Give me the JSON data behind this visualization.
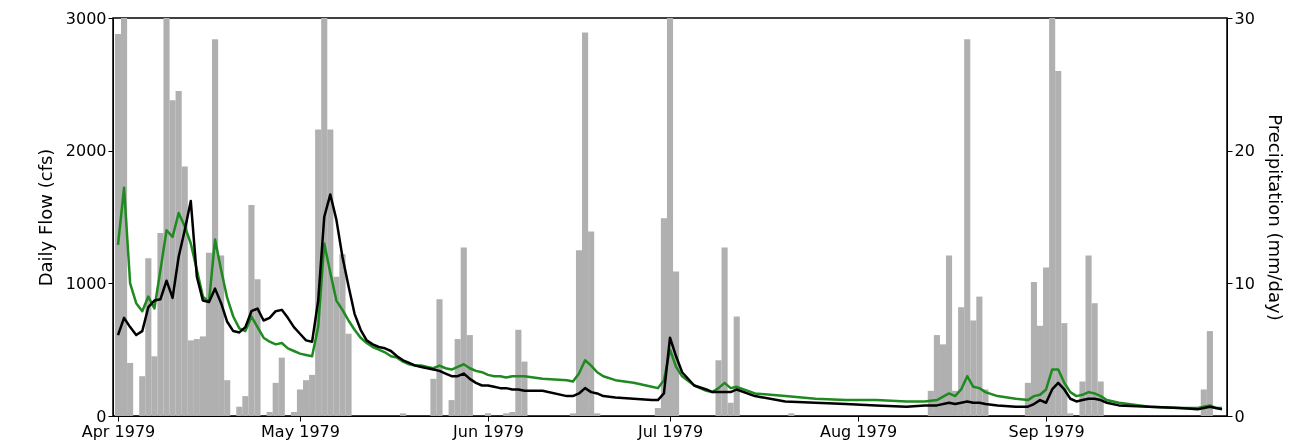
{
  "chart_data": {
    "type": "line",
    "ylabel": "Daily Flow (cfs)",
    "y2label": "Precipitation (mm/day)",
    "xlim": [
      "1979-04-01",
      "1979-09-30"
    ],
    "xticks": [
      {
        "value": "1979-04-01",
        "label": "Apr 1979"
      },
      {
        "value": "1979-05-01",
        "label": "May 1979"
      },
      {
        "value": "1979-06-01",
        "label": "Jun 1979"
      },
      {
        "value": "1979-07-01",
        "label": "Jul 1979"
      },
      {
        "value": "1979-08-01",
        "label": "Aug 1979"
      },
      {
        "value": "1979-09-01",
        "label": "Sep 1979"
      }
    ],
    "ylim": [
      0,
      3000
    ],
    "yticks": [
      0,
      1000,
      2000,
      3000
    ],
    "y2lim": [
      0,
      30
    ],
    "y2ticks": [
      0,
      10,
      20,
      30
    ],
    "series": [
      {
        "type": "bar",
        "axis": "y2",
        "color": "#b0b0b0",
        "x": [
          "1979-04-01",
          "1979-04-02",
          "1979-04-03",
          "1979-04-05",
          "1979-04-06",
          "1979-04-07",
          "1979-04-08",
          "1979-04-09",
          "1979-04-10",
          "1979-04-11",
          "1979-04-12",
          "1979-04-13",
          "1979-04-14",
          "1979-04-15",
          "1979-04-16",
          "1979-04-17",
          "1979-04-18",
          "1979-04-19",
          "1979-04-21",
          "1979-04-22",
          "1979-04-23",
          "1979-04-24",
          "1979-04-26",
          "1979-04-27",
          "1979-04-28",
          "1979-04-30",
          "1979-05-01",
          "1979-05-02",
          "1979-05-03",
          "1979-05-04",
          "1979-05-05",
          "1979-05-06",
          "1979-05-07",
          "1979-05-08",
          "1979-05-09",
          "1979-05-18",
          "1979-05-23",
          "1979-05-24",
          "1979-05-26",
          "1979-05-27",
          "1979-05-28",
          "1979-05-29",
          "1979-06-01",
          "1979-06-04",
          "1979-06-05",
          "1979-06-06",
          "1979-06-07",
          "1979-06-15",
          "1979-06-16",
          "1979-06-17",
          "1979-06-18",
          "1979-06-19",
          "1979-06-29",
          "1979-06-30",
          "1979-07-01",
          "1979-07-02",
          "1979-07-09",
          "1979-07-10",
          "1979-07-11",
          "1979-07-12",
          "1979-07-21",
          "1979-07-27",
          "1979-08-13",
          "1979-08-14",
          "1979-08-15",
          "1979-08-16",
          "1979-08-17",
          "1979-08-18",
          "1979-08-19",
          "1979-08-20",
          "1979-08-21",
          "1979-08-22",
          "1979-08-29",
          "1979-08-30",
          "1979-08-31",
          "1979-09-01",
          "1979-09-02",
          "1979-09-03",
          "1979-09-04",
          "1979-09-05",
          "1979-09-07",
          "1979-09-08",
          "1979-09-09",
          "1979-09-10",
          "1979-09-27",
          "1979-09-28"
        ],
        "values": [
          28.8,
          30,
          4.0,
          3.0,
          11.9,
          4.5,
          13.8,
          30,
          23.8,
          24.5,
          18.8,
          5.7,
          5.8,
          6.0,
          12.3,
          28.4,
          12.1,
          2.7,
          0.7,
          1.5,
          15.9,
          10.3,
          0.3,
          2.5,
          4.4,
          0.3,
          2.0,
          2.7,
          3.1,
          21.6,
          30,
          21.6,
          10.5,
          12.2,
          6.2,
          0.2,
          2.8,
          8.8,
          1.2,
          5.8,
          12.7,
          6.1,
          0.2,
          0.2,
          0.3,
          6.5,
          4.1,
          0.2,
          12.5,
          28.9,
          13.9,
          0.2,
          0.6,
          14.9,
          30,
          10.9,
          4.2,
          12.7,
          1.0,
          7.5,
          0.2,
          null,
          1.9,
          6.1,
          5.4,
          12.1,
          1.9,
          8.2,
          28.4,
          7.2,
          9.0,
          2.0,
          2.5,
          10.1,
          6.8,
          11.2,
          30,
          26.0,
          7.0,
          0.2,
          2.6,
          12.1,
          8.5,
          2.6,
          2.0,
          6.4
        ]
      },
      {
        "color": "#1f8a1f",
        "x": [
          "1979-04-01",
          "1979-04-02",
          "1979-04-03",
          "1979-04-04",
          "1979-04-05",
          "1979-04-06",
          "1979-04-07",
          "1979-04-08",
          "1979-04-09",
          "1979-04-10",
          "1979-04-11",
          "1979-04-12",
          "1979-04-13",
          "1979-04-14",
          "1979-04-15",
          "1979-04-16",
          "1979-04-17",
          "1979-04-18",
          "1979-04-19",
          "1979-04-20",
          "1979-04-21",
          "1979-04-22",
          "1979-04-23",
          "1979-04-24",
          "1979-04-25",
          "1979-04-26",
          "1979-04-27",
          "1979-04-28",
          "1979-04-29",
          "1979-04-30",
          "1979-05-01",
          "1979-05-02",
          "1979-05-03",
          "1979-05-04",
          "1979-05-05",
          "1979-05-06",
          "1979-05-07",
          "1979-05-08",
          "1979-05-09",
          "1979-05-10",
          "1979-05-11",
          "1979-05-12",
          "1979-05-13",
          "1979-05-14",
          "1979-05-15",
          "1979-05-16",
          "1979-05-17",
          "1979-05-18",
          "1979-05-19",
          "1979-05-20",
          "1979-05-21",
          "1979-05-22",
          "1979-05-23",
          "1979-05-24",
          "1979-05-25",
          "1979-05-26",
          "1979-05-27",
          "1979-05-28",
          "1979-05-29",
          "1979-05-30",
          "1979-05-31",
          "1979-06-01",
          "1979-06-02",
          "1979-06-03",
          "1979-06-04",
          "1979-06-05",
          "1979-06-06",
          "1979-06-07",
          "1979-06-10",
          "1979-06-14",
          "1979-06-15",
          "1979-06-16",
          "1979-06-17",
          "1979-06-18",
          "1979-06-19",
          "1979-06-20",
          "1979-06-22",
          "1979-06-25",
          "1979-06-28",
          "1979-06-29",
          "1979-06-30",
          "1979-07-01",
          "1979-07-02",
          "1979-07-03",
          "1979-07-05",
          "1979-07-07",
          "1979-07-08",
          "1979-07-09",
          "1979-07-10",
          "1979-07-11",
          "1979-07-12",
          "1979-07-15",
          "1979-07-20",
          "1979-07-25",
          "1979-07-30",
          "1979-08-04",
          "1979-08-09",
          "1979-08-12",
          "1979-08-14",
          "1979-08-16",
          "1979-08-17",
          "1979-08-18",
          "1979-08-19",
          "1979-08-20",
          "1979-08-21",
          "1979-08-22",
          "1979-08-24",
          "1979-08-27",
          "1979-08-29",
          "1979-08-30",
          "1979-08-31",
          "1979-09-01",
          "1979-09-02",
          "1979-09-03",
          "1979-09-04",
          "1979-09-05",
          "1979-09-06",
          "1979-09-07",
          "1979-09-08",
          "1979-09-09",
          "1979-09-10",
          "1979-09-11",
          "1979-09-13",
          "1979-09-18",
          "1979-09-23",
          "1979-09-26",
          "1979-09-27",
          "1979-09-28",
          "1979-09-29",
          "1979-09-30"
        ],
        "values": [
          1290,
          1720,
          1000,
          850,
          790,
          900,
          810,
          1100,
          1400,
          1350,
          1530,
          1430,
          1300,
          1100,
          900,
          860,
          1330,
          1100,
          890,
          750,
          660,
          640,
          750,
          670,
          590,
          560,
          540,
          550,
          510,
          490,
          470,
          460,
          450,
          670,
          1300,
          1080,
          870,
          800,
          720,
          650,
          590,
          550,
          520,
          500,
          480,
          450,
          440,
          410,
          390,
          380,
          380,
          370,
          360,
          380,
          360,
          350,
          370,
          390,
          360,
          340,
          330,
          310,
          300,
          300,
          290,
          300,
          300,
          300,
          280,
          270,
          260,
          320,
          420,
          380,
          330,
          300,
          270,
          250,
          220,
          210,
          270,
          500,
          370,
          300,
          230,
          190,
          180,
          210,
          250,
          210,
          220,
          170,
          150,
          130,
          120,
          120,
          110,
          110,
          120,
          170,
          150,
          200,
          300,
          220,
          210,
          180,
          150,
          130,
          120,
          150,
          160,
          200,
          350,
          350,
          250,
          180,
          150,
          160,
          180,
          170,
          150,
          120,
          100,
          70,
          60,
          60,
          70,
          80,
          60,
          60
        ]
      },
      {
        "color": "#000000",
        "x": [
          "1979-04-01",
          "1979-04-02",
          "1979-04-03",
          "1979-04-04",
          "1979-04-05",
          "1979-04-06",
          "1979-04-07",
          "1979-04-08",
          "1979-04-09",
          "1979-04-10",
          "1979-04-11",
          "1979-04-12",
          "1979-04-13",
          "1979-04-14",
          "1979-04-15",
          "1979-04-16",
          "1979-04-17",
          "1979-04-18",
          "1979-04-19",
          "1979-04-20",
          "1979-04-21",
          "1979-04-22",
          "1979-04-23",
          "1979-04-24",
          "1979-04-25",
          "1979-04-26",
          "1979-04-27",
          "1979-04-28",
          "1979-04-29",
          "1979-04-30",
          "1979-05-01",
          "1979-05-02",
          "1979-05-03",
          "1979-05-04",
          "1979-05-05",
          "1979-05-06",
          "1979-05-07",
          "1979-05-08",
          "1979-05-09",
          "1979-05-10",
          "1979-05-11",
          "1979-05-12",
          "1979-05-13",
          "1979-05-14",
          "1979-05-15",
          "1979-05-16",
          "1979-05-17",
          "1979-05-18",
          "1979-05-19",
          "1979-05-20",
          "1979-05-21",
          "1979-05-22",
          "1979-05-23",
          "1979-05-24",
          "1979-05-25",
          "1979-05-26",
          "1979-05-27",
          "1979-05-28",
          "1979-05-29",
          "1979-05-30",
          "1979-05-31",
          "1979-06-01",
          "1979-06-02",
          "1979-06-03",
          "1979-06-04",
          "1979-06-05",
          "1979-06-06",
          "1979-06-07",
          "1979-06-10",
          "1979-06-14",
          "1979-06-15",
          "1979-06-16",
          "1979-06-17",
          "1979-06-18",
          "1979-06-19",
          "1979-06-20",
          "1979-06-22",
          "1979-06-25",
          "1979-06-28",
          "1979-06-29",
          "1979-06-30",
          "1979-07-01",
          "1979-07-02",
          "1979-07-03",
          "1979-07-05",
          "1979-07-07",
          "1979-07-08",
          "1979-07-09",
          "1979-07-10",
          "1979-07-11",
          "1979-07-12",
          "1979-07-15",
          "1979-07-20",
          "1979-07-25",
          "1979-07-30",
          "1979-08-04",
          "1979-08-09",
          "1979-08-12",
          "1979-08-14",
          "1979-08-16",
          "1979-08-17",
          "1979-08-18",
          "1979-08-19",
          "1979-08-20",
          "1979-08-21",
          "1979-08-22",
          "1979-08-24",
          "1979-08-27",
          "1979-08-29",
          "1979-08-30",
          "1979-08-31",
          "1979-09-01",
          "1979-09-02",
          "1979-09-03",
          "1979-09-04",
          "1979-09-05",
          "1979-09-06",
          "1979-09-07",
          "1979-09-08",
          "1979-09-09",
          "1979-09-10",
          "1979-09-11",
          "1979-09-13",
          "1979-09-18",
          "1979-09-23",
          "1979-09-26",
          "1979-09-27",
          "1979-09-28",
          "1979-09-29",
          "1979-09-30"
        ],
        "values": [
          610,
          740,
          670,
          610,
          640,
          820,
          870,
          880,
          1020,
          890,
          1200,
          1400,
          1620,
          1050,
          870,
          860,
          960,
          850,
          710,
          640,
          630,
          670,
          790,
          810,
          720,
          740,
          790,
          800,
          740,
          670,
          620,
          570,
          560,
          870,
          1500,
          1670,
          1480,
          1200,
          980,
          770,
          650,
          570,
          540,
          520,
          510,
          490,
          450,
          420,
          400,
          380,
          370,
          360,
          350,
          340,
          320,
          300,
          300,
          320,
          280,
          250,
          230,
          230,
          220,
          210,
          210,
          200,
          200,
          190,
          190,
          150,
          150,
          170,
          210,
          180,
          170,
          150,
          140,
          130,
          120,
          120,
          170,
          590,
          450,
          330,
          230,
          200,
          180,
          180,
          180,
          180,
          200,
          150,
          110,
          100,
          90,
          80,
          70,
          80,
          80,
          100,
          90,
          100,
          110,
          100,
          100,
          90,
          80,
          70,
          70,
          90,
          120,
          100,
          200,
          250,
          200,
          130,
          110,
          120,
          130,
          130,
          120,
          100,
          80,
          70,
          60,
          50,
          60,
          70,
          60,
          50
        ]
      }
    ]
  }
}
